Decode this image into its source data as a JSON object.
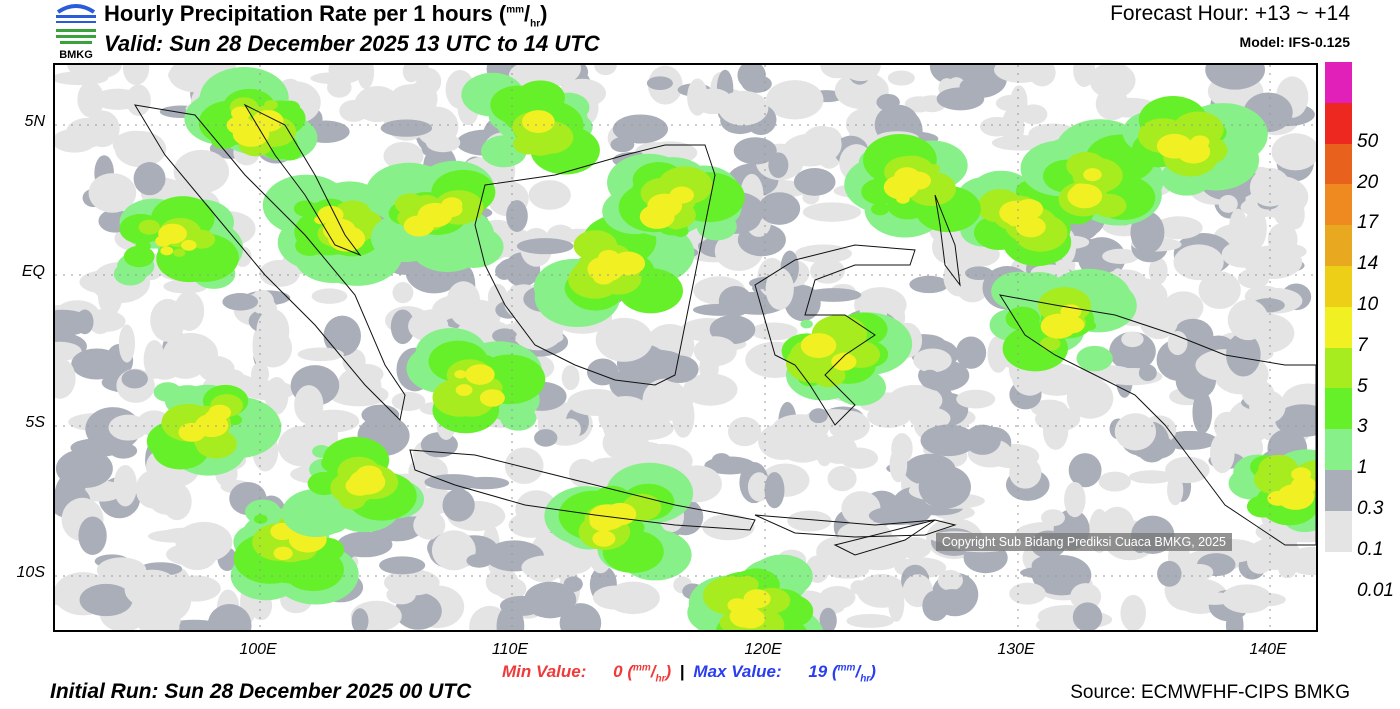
{
  "header": {
    "title": "Hourly Precipitation Rate per 1 hours",
    "unit_num": "mm",
    "unit_den": "hr",
    "valid": "Valid: Sun 28 December 2025 13 UTC to 14 UTC",
    "forecast_hour": "Forecast Hour: +13 ~ +14",
    "model": "Model: IFS-0.125",
    "logo_text": "BMKG"
  },
  "map": {
    "lat_labels": [
      "5N",
      "EQ",
      "5S",
      "10S"
    ],
    "lon_labels": [
      "100E",
      "110E",
      "120E",
      "130E",
      "140E"
    ],
    "copyright": "Copyright Sub Bidang Prediksi Cuaca BMKG, 2025"
  },
  "legend": {
    "levels": [
      {
        "label": "",
        "color": "#e020b8"
      },
      {
        "label": "50",
        "color": "#ec2820"
      },
      {
        "label": "20",
        "color": "#e8621e"
      },
      {
        "label": "17",
        "color": "#ee8a20"
      },
      {
        "label": "14",
        "color": "#e8a820"
      },
      {
        "label": "10",
        "color": "#eecf18"
      },
      {
        "label": "7",
        "color": "#f0f022"
      },
      {
        "label": "5",
        "color": "#a6ec1e"
      },
      {
        "label": "3",
        "color": "#66f02a"
      },
      {
        "label": "1",
        "color": "#88f088"
      },
      {
        "label": "0.3",
        "color": "#a9aeb8"
      },
      {
        "label": "0.1",
        "color": "#e4e4e4"
      },
      {
        "label": "0.01",
        "color": ""
      }
    ]
  },
  "footer": {
    "min_label": "Min Value:",
    "min_value": "0",
    "max_label": "Max Value:",
    "max_value": "19",
    "unit_num": "mm",
    "unit_den": "hr",
    "initial_run": "Initial Run: Sun 28 December 2025 00 UTC",
    "source": "Source: ECMWFHF-CIPS BMKG"
  }
}
